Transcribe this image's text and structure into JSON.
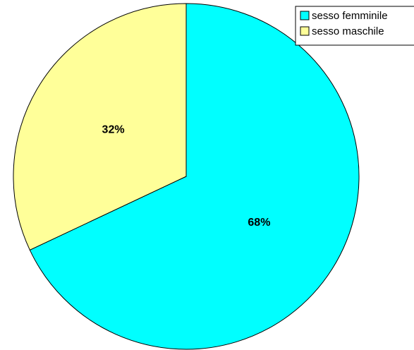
{
  "chart_data": {
    "type": "pie",
    "title": "",
    "categories": [
      "sesso femminile",
      "sesso maschile"
    ],
    "values": [
      68,
      32
    ],
    "data_labels": [
      "68%",
      "32%"
    ],
    "colors": [
      "#00FFFF",
      "#FFFF99"
    ],
    "legend_position": "top-right"
  }
}
